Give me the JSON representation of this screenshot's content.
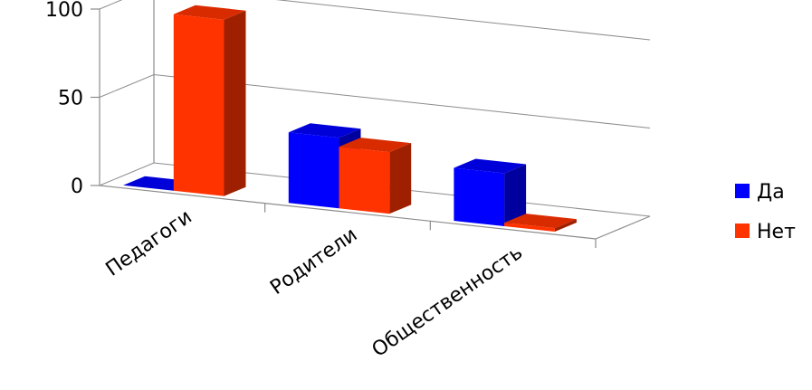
{
  "chart_data": {
    "type": "bar",
    "title": "",
    "xlabel": "",
    "ylabel": "",
    "categories": [
      "Педагоги",
      "Родители",
      "Общественность"
    ],
    "series": [
      {
        "name": "Да",
        "values": [
          0,
          40,
          30
        ],
        "color": "#0000ff"
      },
      {
        "name": "Нет",
        "values": [
          100,
          35,
          2
        ],
        "color": "#ff3300"
      }
    ],
    "ylim": [
      0,
      100
    ],
    "yticks": [
      0,
      50,
      100
    ],
    "grid": true,
    "legend_position": "right",
    "style": "3d-clustered-column"
  }
}
